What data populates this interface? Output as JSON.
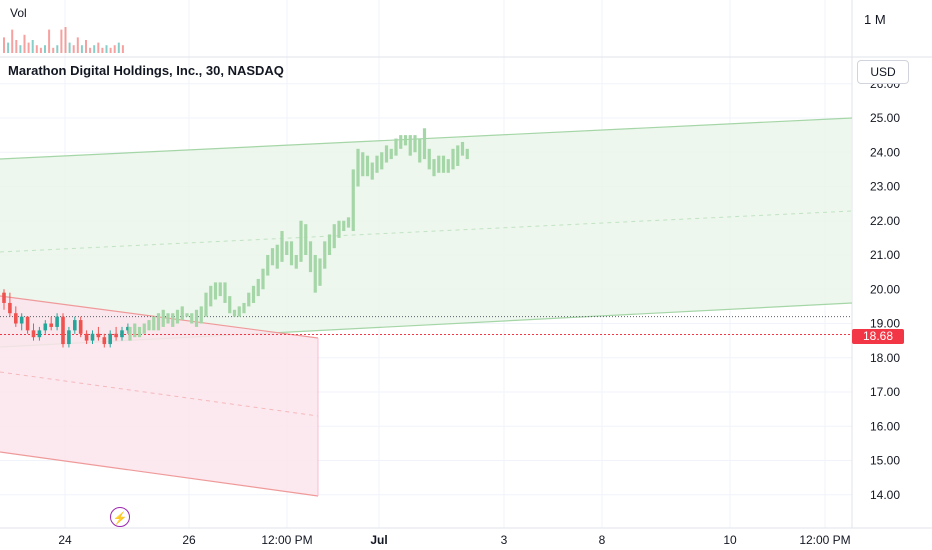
{
  "header": {
    "volume_label": "Vol",
    "volume_scale_label": "1 M",
    "symbol_title": "Marathon Digital Holdings, Inc., 30, NASDAQ",
    "currency": "USD",
    "last_price": "18.68"
  },
  "colors": {
    "up": "#26a69a",
    "down": "#ef5350",
    "up_channel_line": "#a5d6a7",
    "up_channel_fill": "#e8f5e9",
    "down_channel_line": "#ef9a9a",
    "down_channel_fill": "#fce4ec",
    "bar_green": "#a5d6a7",
    "price_tag": "#f23645",
    "event_icon": "#9c27b0"
  },
  "chart_data": {
    "type": "candlestick",
    "x_tick_labels": [
      "24",
      "26",
      "12:00 PM",
      "Jul",
      "3",
      "8",
      "10",
      "12:00 PM"
    ],
    "y_tick_labels": [
      "26.00",
      "25.00",
      "24.00",
      "23.00",
      "22.00",
      "21.00",
      "20.00",
      "19.00",
      "18.00",
      "17.00",
      "16.00",
      "15.00",
      "14.00"
    ],
    "ylim": [
      13.4,
      26.4
    ],
    "grid": true,
    "last_price": 18.68,
    "reference_price": 19.2,
    "candles": [
      [
        19.9,
        20.0,
        19.4,
        19.6
      ],
      [
        19.6,
        19.9,
        19.2,
        19.3
      ],
      [
        19.3,
        19.5,
        18.9,
        19.0
      ],
      [
        19.0,
        19.3,
        18.8,
        19.2
      ],
      [
        19.2,
        19.2,
        18.7,
        18.8
      ],
      [
        18.8,
        19.0,
        18.5,
        18.6
      ],
      [
        18.6,
        18.9,
        18.5,
        18.8
      ],
      [
        18.8,
        19.1,
        18.7,
        19.0
      ],
      [
        19.0,
        19.2,
        18.8,
        18.9
      ],
      [
        18.9,
        19.3,
        18.8,
        19.2
      ],
      [
        19.2,
        19.3,
        18.3,
        18.4
      ],
      [
        18.4,
        18.9,
        18.3,
        18.8
      ],
      [
        18.8,
        19.2,
        18.7,
        19.1
      ],
      [
        19.1,
        19.2,
        18.6,
        18.7
      ],
      [
        18.7,
        18.8,
        18.4,
        18.5
      ],
      [
        18.5,
        18.8,
        18.4,
        18.7
      ],
      [
        18.7,
        18.9,
        18.5,
        18.6
      ],
      [
        18.6,
        18.7,
        18.3,
        18.4
      ],
      [
        18.4,
        18.8,
        18.3,
        18.7
      ],
      [
        18.7,
        18.9,
        18.5,
        18.6
      ],
      [
        18.6,
        18.9,
        18.5,
        18.8
      ],
      [
        18.8,
        19.0,
        18.7,
        18.9
      ]
    ],
    "bars": [
      [
        18.5,
        18.9
      ],
      [
        18.6,
        19.0
      ],
      [
        18.6,
        18.9
      ],
      [
        18.7,
        19.0
      ],
      [
        18.8,
        19.1
      ],
      [
        18.8,
        19.2
      ],
      [
        18.8,
        19.3
      ],
      [
        18.9,
        19.4
      ],
      [
        19.0,
        19.3
      ],
      [
        18.9,
        19.3
      ],
      [
        19.0,
        19.4
      ],
      [
        19.1,
        19.5
      ],
      [
        19.2,
        19.3
      ],
      [
        19.0,
        19.3
      ],
      [
        18.9,
        19.4
      ],
      [
        19.0,
        19.5
      ],
      [
        19.2,
        19.9
      ],
      [
        19.5,
        20.1
      ],
      [
        19.7,
        20.2
      ],
      [
        19.8,
        20.2
      ],
      [
        19.6,
        20.2
      ],
      [
        19.3,
        19.8
      ],
      [
        19.2,
        19.4
      ],
      [
        19.2,
        19.5
      ],
      [
        19.3,
        19.6
      ],
      [
        19.5,
        19.9
      ],
      [
        19.6,
        20.1
      ],
      [
        19.8,
        20.3
      ],
      [
        20.0,
        20.6
      ],
      [
        20.4,
        21.0
      ],
      [
        20.7,
        21.2
      ],
      [
        20.6,
        21.3
      ],
      [
        20.8,
        21.7
      ],
      [
        21.0,
        21.4
      ],
      [
        20.7,
        21.4
      ],
      [
        20.6,
        21.0
      ],
      [
        20.8,
        22.0
      ],
      [
        21.0,
        21.9
      ],
      [
        20.5,
        21.4
      ],
      [
        19.9,
        21.0
      ],
      [
        20.1,
        20.9
      ],
      [
        20.6,
        21.4
      ],
      [
        21.0,
        21.6
      ],
      [
        21.2,
        21.9
      ],
      [
        21.5,
        22.0
      ],
      [
        21.7,
        22.0
      ],
      [
        21.8,
        22.1
      ],
      [
        21.7,
        23.5
      ],
      [
        23.0,
        24.1
      ],
      [
        23.3,
        24.0
      ],
      [
        23.3,
        23.9
      ],
      [
        23.2,
        23.7
      ],
      [
        23.4,
        23.9
      ],
      [
        23.5,
        24.0
      ],
      [
        23.7,
        24.2
      ],
      [
        23.8,
        24.1
      ],
      [
        23.9,
        24.4
      ],
      [
        24.1,
        24.5
      ],
      [
        24.2,
        24.5
      ],
      [
        23.9,
        24.5
      ],
      [
        24.0,
        24.5
      ],
      [
        23.7,
        24.4
      ],
      [
        23.8,
        24.7
      ],
      [
        23.5,
        24.1
      ],
      [
        23.3,
        23.8
      ],
      [
        23.4,
        23.9
      ],
      [
        23.4,
        23.9
      ],
      [
        23.4,
        23.8
      ],
      [
        23.5,
        24.1
      ],
      [
        23.6,
        24.2
      ],
      [
        23.9,
        24.3
      ],
      [
        23.8,
        24.1
      ]
    ],
    "volumes": [
      0.6,
      0.4,
      0.9,
      0.5,
      0.3,
      0.7,
      0.4,
      0.5,
      0.3,
      0.2,
      0.3,
      0.9,
      0.2,
      0.3,
      0.9,
      1.0,
      0.4,
      0.3,
      0.6,
      0.3,
      0.5,
      0.2,
      0.3,
      0.4,
      0.2,
      0.3,
      0.2,
      0.3,
      0.4,
      0.3
    ]
  }
}
